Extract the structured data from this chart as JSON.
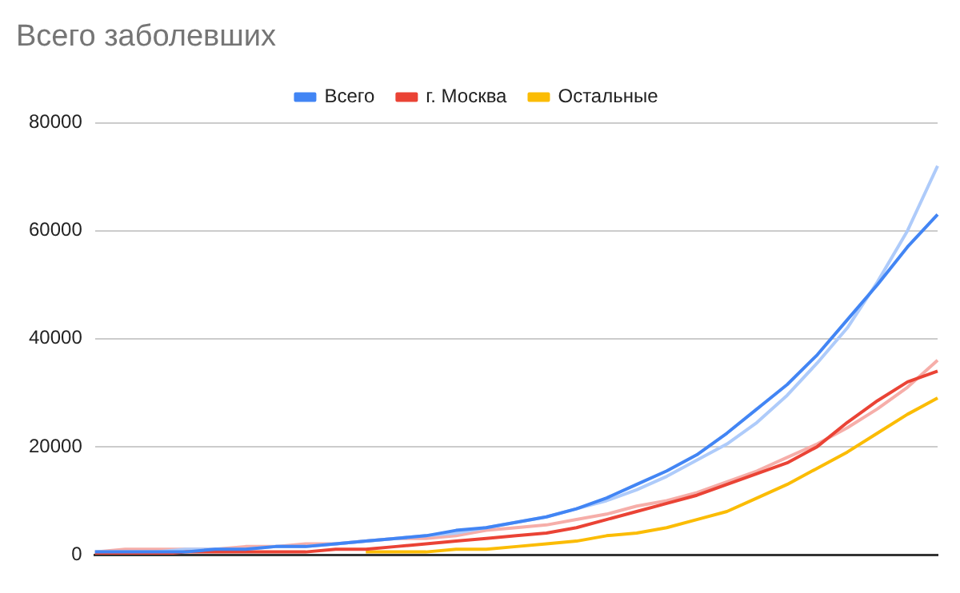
{
  "chart_data": {
    "type": "line",
    "title": "Всего заболевших",
    "categories": [
      null,
      null,
      null,
      null,
      null,
      null,
      null,
      null,
      null,
      null,
      null,
      null,
      null,
      null,
      null,
      null,
      null,
      null,
      null,
      null,
      null,
      null,
      null,
      null,
      null,
      null,
      null,
      null,
      null
    ],
    "series": [
      {
        "name": "Всего",
        "color": "#4285f4",
        "values": [
          500,
          500,
          500,
          500,
          1000,
          1000,
          1500,
          1500,
          2000,
          2500,
          3000,
          3500,
          4500,
          5000,
          6000,
          7000,
          8500,
          10500,
          13000,
          15500,
          18500,
          22500,
          27000,
          31500,
          37000,
          43500,
          50000,
          57000,
          63000
        ]
      },
      {
        "name": "г. Москва",
        "color": "#ea4335",
        "values": [
          0,
          0,
          0,
          500,
          500,
          500,
          500,
          500,
          1000,
          1000,
          1500,
          2000,
          2500,
          3000,
          3500,
          4000,
          5000,
          6500,
          8000,
          9500,
          11000,
          13000,
          15000,
          17000,
          20000,
          24500,
          28500,
          32000,
          34000
        ]
      },
      {
        "name": "Остальные",
        "color": "#fbbc04",
        "values": [
          null,
          null,
          null,
          null,
          null,
          null,
          null,
          null,
          null,
          500,
          500,
          500,
          1000,
          1000,
          1500,
          2000,
          2500,
          3500,
          4000,
          5000,
          6500,
          8000,
          10500,
          13000,
          16000,
          19000,
          22500,
          26000,
          29000
        ]
      },
      {
        "color": "#aecbfa",
        "values": [
          500,
          500,
          500,
          1000,
          1000,
          1000,
          1500,
          1500,
          2000,
          2500,
          3000,
          3500,
          4000,
          5000,
          6000,
          7000,
          8500,
          10000,
          12000,
          14500,
          17500,
          20500,
          24500,
          29500,
          35500,
          42000,
          50500,
          60000,
          72000
        ]
      },
      {
        "color": "#f6aea9",
        "values": [
          500,
          1000,
          1000,
          1000,
          1000,
          1500,
          1500,
          2000,
          2000,
          2500,
          3000,
          3000,
          3500,
          4500,
          5000,
          5500,
          6500,
          7500,
          9000,
          10000,
          11500,
          13500,
          15500,
          18000,
          20500,
          23500,
          27000,
          31000,
          36000
        ]
      }
    ],
    "ylim": [
      0,
      80000
    ],
    "yticks": [
      0,
      20000,
      40000,
      60000,
      80000
    ],
    "grid": "y",
    "legend": "top",
    "marker": "none",
    "line_style": "solid"
  }
}
